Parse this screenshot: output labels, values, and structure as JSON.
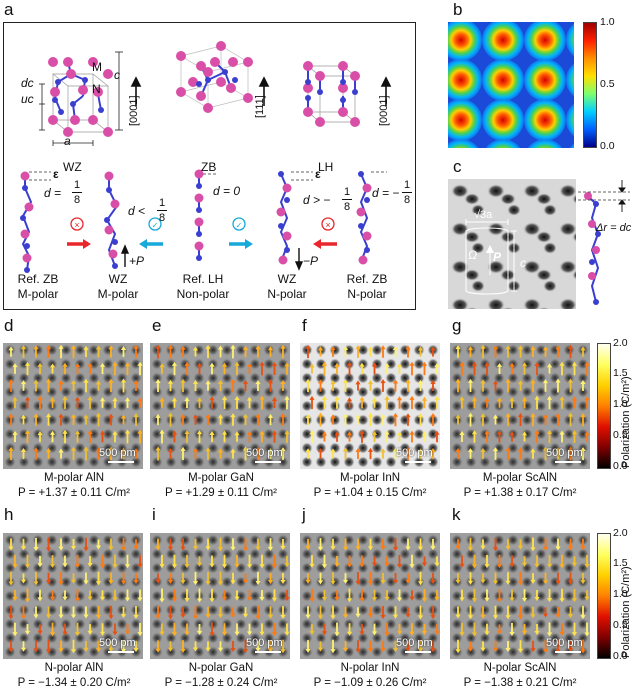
{
  "panel_letters": {
    "a": "a",
    "b": "b",
    "c": "c",
    "d": "d",
    "e": "e",
    "f": "f",
    "g": "g",
    "h": "h",
    "i": "i",
    "j": "j",
    "k": "k"
  },
  "panel_a": {
    "structures": [
      "WZ",
      "ZB",
      "LH"
    ],
    "axes": [
      "[0001]",
      "[111]",
      "[0001]"
    ],
    "labels": {
      "M": "M",
      "N": "N",
      "c": "c",
      "a": "a",
      "dc": "dc",
      "uc": "uc",
      "eps": "ε"
    },
    "chains": [
      {
        "d": "d = 1/8",
        "name1": "Ref. ZB",
        "name2": "M-polar"
      },
      {
        "d": "d < 1/8",
        "name1": "WZ",
        "name2": "M-polar",
        "pol": "+P"
      },
      {
        "d": "d = 0",
        "name1": "Ref. LH",
        "name2": "Non-polar"
      },
      {
        "d": "d > −1/8",
        "name1": "WZ",
        "name2": "N-polar",
        "pol": "−P"
      },
      {
        "d": "d = −1/8",
        "name1": "Ref. ZB",
        "name2": "N-polar"
      }
    ],
    "d_text": {
      "eq": "d =",
      "lt": "d <",
      "zero": "d = 0",
      "gt": "d > −",
      "eqn": "d = −",
      "num": "1",
      "den": "8"
    }
  },
  "panel_b": {
    "colorbar_ticks": [
      "1.0",
      "0.5",
      "0.0"
    ]
  },
  "panel_c": {
    "sqrt3a": "√3a",
    "omega": "Ω",
    "P": "P",
    "c": "c",
    "dr": "Δr = dc"
  },
  "colorbar": {
    "ticks": [
      "2.0",
      "1.5",
      "1.0",
      "0.5",
      "0.0"
    ],
    "title": "Polarization (C/m²)"
  },
  "scale_label": "500 pm",
  "row1": [
    {
      "name": "M-polar AlN",
      "value": "P = +1.37 ± 0.11 C/m²"
    },
    {
      "name": "M-polar GaN",
      "value": "P = +1.29 ± 0.11 C/m²"
    },
    {
      "name": "M-polar InN",
      "value": "P = +1.04 ± 0.15 C/m²"
    },
    {
      "name": "M-polar ScAlN",
      "value": "P = +1.38 ± 0.17 C/m²"
    }
  ],
  "row2": [
    {
      "name": "N-polar AlN",
      "value": "P = −1.34 ± 0.20 C/m²"
    },
    {
      "name": "N-polar GaN",
      "value": "P = −1.28 ± 0.24 C/m²"
    },
    {
      "name": "N-polar InN",
      "value": "P = −1.09 ± 0.26 C/m²"
    },
    {
      "name": "N-polar ScAlN",
      "value": "P = −1.38 ± 0.21 C/m²"
    }
  ],
  "colors": {
    "atom": "#d94fa8",
    "bond": "#3a3fd0",
    "arrow_bad": "#e8262b",
    "arrow_good": "#17a9d9"
  }
}
